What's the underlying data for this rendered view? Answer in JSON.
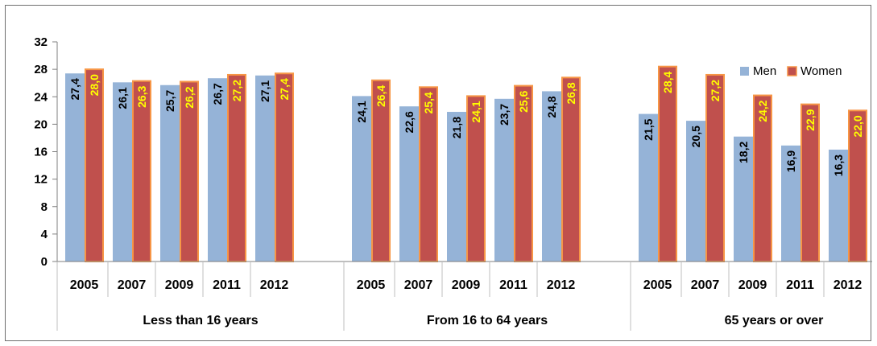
{
  "chart_data": {
    "type": "bar",
    "title": "",
    "xlabel": "",
    "ylabel": "",
    "ylim": [
      0,
      32
    ],
    "yticks": [
      0,
      4,
      8,
      12,
      16,
      20,
      24,
      28,
      32
    ],
    "legend_position": "top-right",
    "grid": false,
    "decimal_separator": ",",
    "groups": [
      {
        "label": "Less than 16 years",
        "categories": [
          "2005",
          "2007",
          "2009",
          "2011",
          "2012"
        ],
        "series": [
          {
            "name": "Men",
            "values": [
              27.4,
              26.1,
              25.7,
              26.7,
              27.1
            ]
          },
          {
            "name": "Women",
            "values": [
              28.0,
              26.3,
              26.2,
              27.2,
              27.4
            ]
          }
        ]
      },
      {
        "label": "From 16 to 64 years",
        "categories": [
          "2005",
          "2007",
          "2009",
          "2011",
          "2012"
        ],
        "series": [
          {
            "name": "Men",
            "values": [
              24.1,
              22.6,
              21.8,
              23.7,
              24.8
            ]
          },
          {
            "name": "Women",
            "values": [
              26.4,
              25.4,
              24.1,
              25.6,
              26.8
            ]
          }
        ]
      },
      {
        "label": "65 years or over",
        "categories": [
          "2005",
          "2007",
          "2009",
          "2011",
          "2012"
        ],
        "series": [
          {
            "name": "Men",
            "values": [
              21.5,
              20.5,
              18.2,
              16.9,
              16.3
            ]
          },
          {
            "name": "Women",
            "values": [
              28.4,
              27.2,
              24.2,
              22.9,
              22.0
            ]
          }
        ]
      }
    ],
    "colors": {
      "Men": "#95b3d7",
      "Women": "#c0504d",
      "women_border": "#f79646",
      "men_label": "#000000",
      "women_label": "#ffff00"
    }
  }
}
